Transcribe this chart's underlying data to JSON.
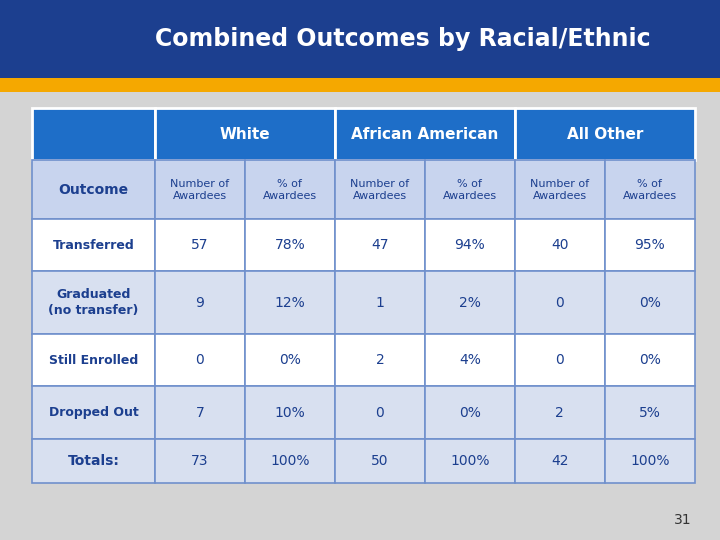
{
  "title": "Combined Outcomes by Racial/Ethnic",
  "title_bg": "#1c3f8f",
  "title_color": "#ffffff",
  "gold_bar_color": "#f5a800",
  "header_bg": "#1e6ec8",
  "header_color": "#ffffff",
  "subheader_bg": "#c8d4ee",
  "subheader_color": "#1c3f8f",
  "row_bg_white": "#ffffff",
  "row_bg_light": "#d8e0f0",
  "row_label_color": "#1c3f8f",
  "data_color": "#1c3f8f",
  "border_color": "#7090cc",
  "slide_bg": "#d4d4d4",
  "col_groups": [
    "White",
    "African American",
    "All Other"
  ],
  "sub_cols": [
    "Number of\nAwardees",
    "% of\nAwardees"
  ],
  "outcome_label": "Outcome",
  "row_labels": [
    "Transferred",
    "Graduated\n(no transfer)",
    "Still Enrolled",
    "Dropped Out",
    "Totals:"
  ],
  "data": [
    [
      "57",
      "78%",
      "47",
      "94%",
      "40",
      "95%"
    ],
    [
      "9",
      "12%",
      "1",
      "2%",
      "0",
      "0%"
    ],
    [
      "0",
      "0%",
      "2",
      "4%",
      "0",
      "0%"
    ],
    [
      "7",
      "10%",
      "0",
      "0%",
      "2",
      "5%"
    ],
    [
      "73",
      "100%",
      "50",
      "100%",
      "42",
      "100%"
    ]
  ],
  "page_number": "31"
}
